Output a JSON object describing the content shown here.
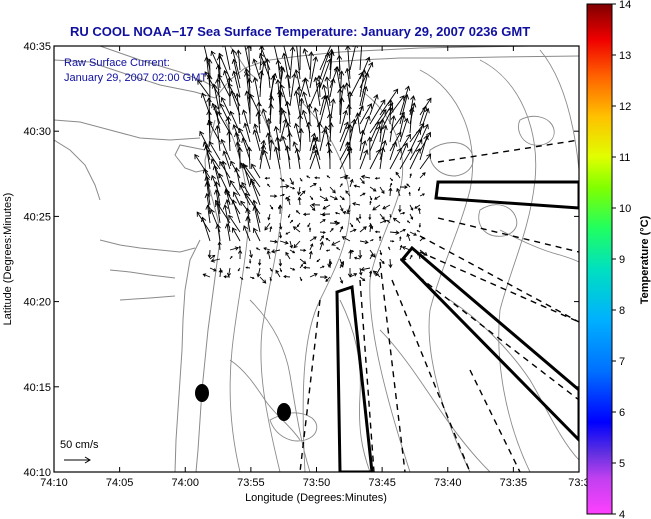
{
  "title": "RU COOL  NOAA−17  Sea Surface Temperature:  January 29, 2007 0236 GMT",
  "annotation": {
    "line1": "Raw Surface Current:",
    "line2": "January 29, 2007 02:00 GMT"
  },
  "scale_label": "50 cm/s",
  "axes": {
    "xlabel": "Longitude (Degrees:Minutes)",
    "ylabel": "Latitude (Degrees:Minutes)",
    "x_ticks": [
      "74:10",
      "74:05",
      "74:00",
      "73:55",
      "73:50",
      "73:45",
      "73:40",
      "73:35",
      "73:3"
    ],
    "y_ticks": [
      "40:35",
      "40:30",
      "40:25",
      "40:20",
      "40:15",
      "40:10"
    ]
  },
  "colorbar": {
    "label": "Temperature (°C)",
    "ticks": [
      "14",
      "13",
      "12",
      "11",
      "10",
      "9",
      "8",
      "7",
      "6",
      "5",
      "4"
    ],
    "min": 4,
    "max": 14
  },
  "colors": {
    "title": "#1010a0",
    "contours": "#8a8a8a",
    "frame": "#000000"
  }
}
